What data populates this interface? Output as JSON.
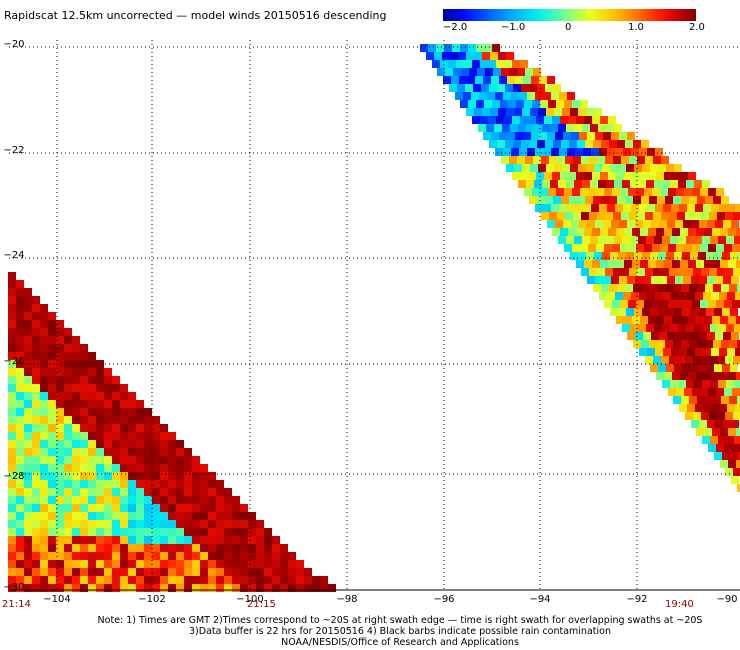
{
  "title": "Rapidscat 12.5km uncorrected — model winds 20150516 descending",
  "colorbar": {
    "labels": [
      "−2.0",
      "−1.0",
      "0",
      "1.0",
      "2.0"
    ],
    "values": [
      -2.0,
      -1.0,
      0,
      1.0,
      2.0
    ]
  },
  "axes": {
    "lat_labels": [
      "−20",
      "−22",
      "−24",
      "−26",
      "−28",
      "−30"
    ],
    "lon_labels": [
      "−104",
      "−102",
      "−100",
      "−98",
      "−96",
      "−94",
      "−92",
      "−90"
    ],
    "lat_range": [
      -30,
      -20
    ],
    "lon_range": [
      -105,
      -90
    ],
    "grid": "dotted"
  },
  "times": {
    "left": "21:14",
    "middle": "21:15",
    "right": "19:40"
  },
  "notes": [
    "Note: 1) Times are GMT 2)Times correspond to ~20S at right swath edge — time is right swath for overlapping swaths at ~20S",
    "3)Data buffer is 22 hrs for 20150516 4) Black barbs indicate possible rain contamination",
    "NOAA/NESDIS/Office of Research and Applications"
  ]
}
